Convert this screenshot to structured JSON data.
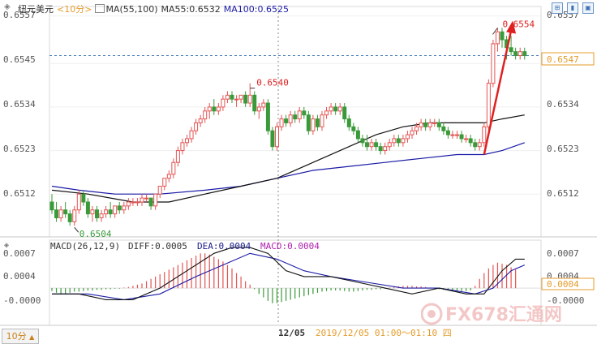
{
  "header": {
    "symbol": "纽元美元",
    "timeframe": "<10分>",
    "ma_label": "MA(55,100)",
    "ma55": "MA55:0.6532",
    "ma100": "MA100:0.6525"
  },
  "macd_header": {
    "label": "MACD(26,12,9)",
    "diff": "DIFF:0.0005",
    "dea": "DEA:0.0004",
    "macd": "MACD:0.0004"
  },
  "price_axis": {
    "left_ticks": [
      "0.6557",
      "0.6545",
      "0.6534",
      "0.6523",
      "0.6512"
    ],
    "right_ticks": [
      "0.6557",
      "0.6534",
      "0.6523",
      "0.6512"
    ],
    "current_price": "0.6547"
  },
  "macd_axis": {
    "left_ticks": [
      "0.0007",
      "0.0004",
      "-0.0000"
    ],
    "right_ticks": [
      "0.0007",
      "0.0004",
      "-0.0000"
    ],
    "current": "0.0004"
  },
  "annotations": {
    "high": "0.6554",
    "mid_high": "0.6540",
    "low": "0.6504"
  },
  "footer": {
    "date_label": "12/05",
    "timestamp": "2019/12/05 01:00～01:10 四",
    "tab": "10分"
  },
  "watermark": "FX678汇通网",
  "colors": {
    "up": "#e55353",
    "down": "#3a9a3a",
    "ma55": "#111111",
    "ma100": "#1a1aa6",
    "accent": "#e02020",
    "axis_text": "#555555"
  },
  "chart_data": {
    "type": "candlestick",
    "price_range": [
      0.6502,
      0.6559
    ],
    "macd_range": [
      -0.0006,
      0.0008
    ],
    "candles": [
      [
        0.651,
        0.6512,
        0.6507,
        0.6508
      ],
      [
        0.6508,
        0.651,
        0.6505,
        0.6506
      ],
      [
        0.6506,
        0.6509,
        0.6505,
        0.6508
      ],
      [
        0.6508,
        0.651,
        0.6506,
        0.6507
      ],
      [
        0.6507,
        0.6508,
        0.6504,
        0.6505
      ],
      [
        0.6505,
        0.6509,
        0.6504,
        0.6508
      ],
      [
        0.6508,
        0.6513,
        0.6507,
        0.6512
      ],
      [
        0.6512,
        0.6513,
        0.6509,
        0.651
      ],
      [
        0.651,
        0.6511,
        0.6506,
        0.6507
      ],
      [
        0.6507,
        0.6509,
        0.6505,
        0.6508
      ],
      [
        0.6508,
        0.6509,
        0.6505,
        0.6506
      ],
      [
        0.6506,
        0.6508,
        0.6505,
        0.6507
      ],
      [
        0.6507,
        0.6509,
        0.6506,
        0.6508
      ],
      [
        0.6508,
        0.651,
        0.6506,
        0.6507
      ],
      [
        0.6507,
        0.6509,
        0.6506,
        0.6509
      ],
      [
        0.6509,
        0.651,
        0.6507,
        0.6508
      ],
      [
        0.6508,
        0.651,
        0.6507,
        0.6509
      ],
      [
        0.6509,
        0.6511,
        0.6508,
        0.651
      ],
      [
        0.651,
        0.6511,
        0.6509,
        0.651
      ],
      [
        0.651,
        0.6511,
        0.6509,
        0.651
      ],
      [
        0.651,
        0.6512,
        0.6509,
        0.6511
      ],
      [
        0.6511,
        0.6512,
        0.651,
        0.6511
      ],
      [
        0.6511,
        0.6511,
        0.6508,
        0.6509
      ],
      [
        0.6509,
        0.6512,
        0.6508,
        0.6512
      ],
      [
        0.6512,
        0.6514,
        0.6511,
        0.6514
      ],
      [
        0.6514,
        0.6516,
        0.6513,
        0.6516
      ],
      [
        0.6516,
        0.6518,
        0.6515,
        0.6517
      ],
      [
        0.6517,
        0.6521,
        0.6516,
        0.652
      ],
      [
        0.652,
        0.6524,
        0.6519,
        0.6523
      ],
      [
        0.6523,
        0.6526,
        0.6522,
        0.6525
      ],
      [
        0.6525,
        0.6527,
        0.6524,
        0.6526
      ],
      [
        0.6526,
        0.6529,
        0.6525,
        0.6528
      ],
      [
        0.6528,
        0.6531,
        0.6527,
        0.653
      ],
      [
        0.653,
        0.6532,
        0.6529,
        0.6531
      ],
      [
        0.6531,
        0.6534,
        0.653,
        0.6533
      ],
      [
        0.6533,
        0.6535,
        0.6531,
        0.6534
      ],
      [
        0.6534,
        0.6536,
        0.6532,
        0.6533
      ],
      [
        0.6533,
        0.6535,
        0.6532,
        0.6534
      ],
      [
        0.6534,
        0.6537,
        0.6533,
        0.6536
      ],
      [
        0.6536,
        0.6538,
        0.6535,
        0.6537
      ],
      [
        0.6537,
        0.6538,
        0.6535,
        0.6536
      ],
      [
        0.6536,
        0.6537,
        0.6534,
        0.6536
      ],
      [
        0.6536,
        0.6537,
        0.6535,
        0.6537
      ],
      [
        0.6537,
        0.6538,
        0.6534,
        0.6535
      ],
      [
        0.6535,
        0.654,
        0.6534,
        0.6537
      ],
      [
        0.6537,
        0.6538,
        0.6532,
        0.6533
      ],
      [
        0.6533,
        0.6535,
        0.6531,
        0.6534
      ],
      [
        0.6534,
        0.6536,
        0.6533,
        0.6535
      ],
      [
        0.6535,
        0.6536,
        0.6527,
        0.6528
      ],
      [
        0.6528,
        0.6529,
        0.6523,
        0.6524
      ],
      [
        0.6524,
        0.653,
        0.6523,
        0.6529
      ],
      [
        0.6529,
        0.6532,
        0.6528,
        0.6531
      ],
      [
        0.6531,
        0.6532,
        0.6529,
        0.653
      ],
      [
        0.653,
        0.6533,
        0.6529,
        0.6532
      ],
      [
        0.6532,
        0.6533,
        0.653,
        0.6531
      ],
      [
        0.6531,
        0.6534,
        0.653,
        0.6533
      ],
      [
        0.6533,
        0.6534,
        0.6531,
        0.6532
      ],
      [
        0.6532,
        0.6533,
        0.6527,
        0.6528
      ],
      [
        0.6528,
        0.6532,
        0.6527,
        0.6531
      ],
      [
        0.6531,
        0.6532,
        0.6528,
        0.6529
      ],
      [
        0.6529,
        0.6533,
        0.6528,
        0.6532
      ],
      [
        0.6532,
        0.6534,
        0.6531,
        0.6533
      ],
      [
        0.6533,
        0.6535,
        0.6532,
        0.6534
      ],
      [
        0.6534,
        0.6535,
        0.6532,
        0.6533
      ],
      [
        0.6533,
        0.6535,
        0.6532,
        0.6534
      ],
      [
        0.6534,
        0.6535,
        0.653,
        0.6531
      ],
      [
        0.6531,
        0.6532,
        0.6528,
        0.6529
      ],
      [
        0.6529,
        0.653,
        0.6527,
        0.6528
      ],
      [
        0.6528,
        0.6529,
        0.6525,
        0.6526
      ],
      [
        0.6526,
        0.6527,
        0.6524,
        0.6525
      ],
      [
        0.6525,
        0.6527,
        0.6523,
        0.6524
      ],
      [
        0.6524,
        0.6526,
        0.6523,
        0.6525
      ],
      [
        0.6525,
        0.6526,
        0.6523,
        0.6524
      ],
      [
        0.6524,
        0.6525,
        0.6522,
        0.6523
      ],
      [
        0.6523,
        0.6525,
        0.6522,
        0.6524
      ],
      [
        0.6524,
        0.6526,
        0.6523,
        0.6525
      ],
      [
        0.6525,
        0.6527,
        0.6524,
        0.6526
      ],
      [
        0.6526,
        0.6527,
        0.6524,
        0.6525
      ],
      [
        0.6525,
        0.6527,
        0.6524,
        0.6526
      ],
      [
        0.6526,
        0.6528,
        0.6525,
        0.6527
      ],
      [
        0.6527,
        0.6529,
        0.6526,
        0.6528
      ],
      [
        0.6528,
        0.653,
        0.6527,
        0.6529
      ],
      [
        0.6529,
        0.6531,
        0.6528,
        0.653
      ],
      [
        0.653,
        0.6531,
        0.6528,
        0.6529
      ],
      [
        0.6529,
        0.6531,
        0.6528,
        0.653
      ],
      [
        0.653,
        0.6531,
        0.6529,
        0.653
      ],
      [
        0.653,
        0.6531,
        0.6528,
        0.6529
      ],
      [
        0.6529,
        0.653,
        0.6527,
        0.6528
      ],
      [
        0.6528,
        0.6529,
        0.6526,
        0.6527
      ],
      [
        0.6527,
        0.6528,
        0.6526,
        0.6527
      ],
      [
        0.6527,
        0.6528,
        0.6526,
        0.6527
      ],
      [
        0.6527,
        0.6528,
        0.6525,
        0.6526
      ],
      [
        0.6526,
        0.6527,
        0.6525,
        0.6526
      ],
      [
        0.6526,
        0.6527,
        0.6524,
        0.6525
      ],
      [
        0.6525,
        0.6526,
        0.6523,
        0.6524
      ],
      [
        0.6524,
        0.6526,
        0.6523,
        0.6525
      ],
      [
        0.6525,
        0.653,
        0.6524,
        0.6529
      ],
      [
        0.6529,
        0.6541,
        0.6528,
        0.654
      ],
      [
        0.654,
        0.6551,
        0.6539,
        0.655
      ],
      [
        0.655,
        0.6554,
        0.6548,
        0.6553
      ],
      [
        0.6553,
        0.6554,
        0.6549,
        0.6551
      ],
      [
        0.6551,
        0.6552,
        0.6546,
        0.6549
      ],
      [
        0.6549,
        0.6552,
        0.6547,
        0.6548
      ],
      [
        0.6548,
        0.6549,
        0.6546,
        0.6547
      ],
      [
        0.6547,
        0.6549,
        0.6546,
        0.6548
      ],
      [
        0.6548,
        0.6549,
        0.6546,
        0.6547
      ]
    ],
    "ma55": [
      [
        0,
        0.6513
      ],
      [
        8,
        0.6512
      ],
      [
        18,
        0.651
      ],
      [
        26,
        0.651
      ],
      [
        34,
        0.6512
      ],
      [
        42,
        0.6514
      ],
      [
        50,
        0.6516
      ],
      [
        58,
        0.652
      ],
      [
        66,
        0.6524
      ],
      [
        72,
        0.6527
      ],
      [
        78,
        0.6529
      ],
      [
        84,
        0.653
      ],
      [
        90,
        0.653
      ],
      [
        96,
        0.653
      ],
      [
        100,
        0.6531
      ],
      [
        105,
        0.6532
      ]
    ],
    "ma100": [
      [
        0,
        0.6514
      ],
      [
        6,
        0.6513
      ],
      [
        14,
        0.6512
      ],
      [
        24,
        0.6512
      ],
      [
        34,
        0.6513
      ],
      [
        42,
        0.6514
      ],
      [
        50,
        0.6516
      ],
      [
        58,
        0.6518
      ],
      [
        66,
        0.6519
      ],
      [
        74,
        0.652
      ],
      [
        82,
        0.6521
      ],
      [
        90,
        0.6522
      ],
      [
        96,
        0.6522
      ],
      [
        100,
        0.6523
      ],
      [
        105,
        0.6525
      ]
    ],
    "macd_diff": [
      [
        0,
        -0.0001
      ],
      [
        6,
        -0.0001
      ],
      [
        12,
        -0.0002
      ],
      [
        18,
        -0.0002
      ],
      [
        24,
        0.0
      ],
      [
        30,
        0.0003
      ],
      [
        36,
        0.0006
      ],
      [
        40,
        0.0007
      ],
      [
        44,
        0.0007
      ],
      [
        48,
        0.0006
      ],
      [
        52,
        0.0003
      ],
      [
        56,
        0.0002
      ],
      [
        62,
        0.0002
      ],
      [
        68,
        0.0001
      ],
      [
        74,
        0.0
      ],
      [
        80,
        -0.0001
      ],
      [
        86,
        -0.0
      ],
      [
        92,
        -0.0001
      ],
      [
        96,
        -0.0001
      ],
      [
        100,
        0.0003
      ],
      [
        103,
        0.0005
      ],
      [
        105,
        0.0005
      ]
    ],
    "macd_dea": [
      [
        0,
        -0.0001
      ],
      [
        8,
        -0.0001
      ],
      [
        16,
        -0.0002
      ],
      [
        24,
        -0.0001
      ],
      [
        32,
        0.0002
      ],
      [
        38,
        0.0004
      ],
      [
        44,
        0.0006
      ],
      [
        50,
        0.0005
      ],
      [
        56,
        0.0003
      ],
      [
        62,
        0.0002
      ],
      [
        70,
        0.0001
      ],
      [
        78,
        0.0
      ],
      [
        86,
        -0.0
      ],
      [
        94,
        -0.0001
      ],
      [
        98,
        -0.0
      ],
      [
        102,
        0.0003
      ],
      [
        105,
        0.0004
      ]
    ],
    "macd_hist": [
      -5e-05,
      -8e-05,
      -0.0001,
      -0.0001,
      -8e-05,
      -6e-05,
      -6e-05,
      -5e-05,
      -4e-05,
      -4e-05,
      -3e-05,
      -3e-05,
      -2e-05,
      -2e-05,
      -1e-05,
      -1e-05,
      1e-05,
      2e-05,
      4e-05,
      6e-05,
      8e-05,
      0.00012,
      0.00016,
      0.0002,
      0.00024,
      0.00028,
      0.00032,
      0.00036,
      0.0004,
      0.00044,
      0.00048,
      0.00052,
      0.00056,
      0.0006,
      0.0006,
      0.00058,
      0.00054,
      0.0005,
      0.00046,
      0.0004,
      0.00034,
      0.00026,
      0.0002,
      0.00012,
      6e-05,
      -2e-05,
      -0.0001,
      -0.00016,
      -0.00022,
      -0.00026,
      -0.00026,
      -0.00024,
      -0.00022,
      -0.0002,
      -0.00018,
      -0.00016,
      -0.00014,
      -0.00012,
      -0.0001,
      -8e-05,
      -6e-05,
      -5e-05,
      -4e-05,
      -4e-05,
      -4e-05,
      -5e-05,
      -6e-05,
      -6e-05,
      -5e-05,
      -4e-05,
      -3e-05,
      -3e-05,
      -2e-05,
      -2e-05,
      -1e-05,
      1e-05,
      2e-05,
      3e-05,
      4e-05,
      4e-05,
      4e-05,
      3e-05,
      3e-05,
      2e-05,
      1e-05,
      -1e-05,
      -2e-05,
      -3e-05,
      -3e-05,
      -4e-05,
      -4e-05,
      -5e-05,
      -5e-05,
      -4e-05,
      4e-05,
      0.00016,
      0.00026,
      0.00034,
      0.0004,
      0.00044,
      0.00042,
      0.0004,
      0.00036,
      0.00032
    ]
  }
}
